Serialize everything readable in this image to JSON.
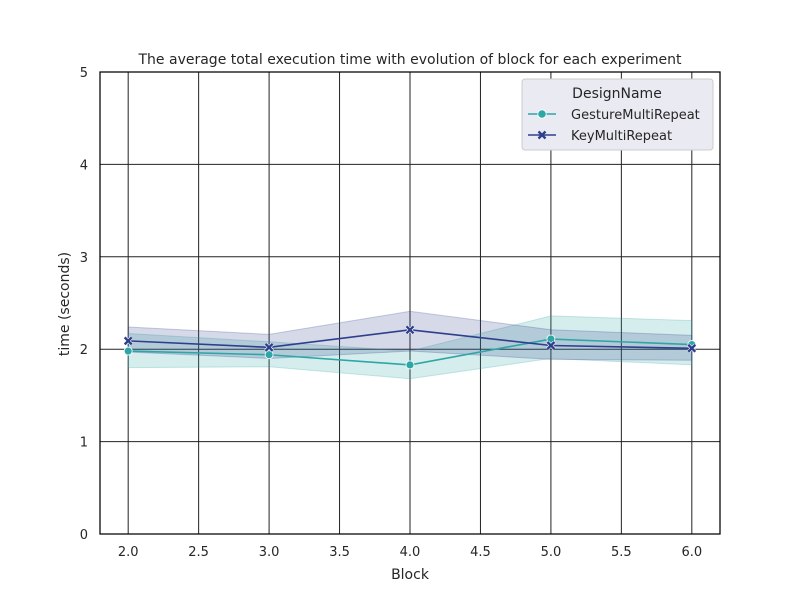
{
  "chart_data": {
    "type": "line",
    "title": "The average total execution time with evolution of block for each experiment",
    "xlabel": "Block",
    "ylabel": "time (seconds)",
    "xlim": [
      1.8,
      6.2
    ],
    "ylim": [
      0,
      5
    ],
    "x_ticks": [
      "2.0",
      "2.5",
      "3.0",
      "3.5",
      "4.0",
      "4.5",
      "5.0",
      "5.5",
      "6.0"
    ],
    "y_ticks": [
      "0",
      "1",
      "2",
      "3",
      "4",
      "5"
    ],
    "grid": true,
    "legend": {
      "title": "DesignName",
      "placement": "top-right"
    },
    "x": [
      2.0,
      3.0,
      4.0,
      5.0,
      6.0
    ],
    "series": [
      {
        "name": "GestureMultiRepeat",
        "color": "#2ea6a6",
        "marker": "circle",
        "values": [
          1.98,
          1.94,
          1.83,
          2.11,
          2.05
        ],
        "ci_low": [
          1.8,
          1.81,
          1.68,
          1.9,
          1.83
        ],
        "ci_high": [
          2.17,
          2.08,
          1.98,
          2.36,
          2.31
        ]
      },
      {
        "name": "KeyMultiRepeat",
        "color": "#2e3f8c",
        "marker": "x",
        "values": [
          2.09,
          2.02,
          2.21,
          2.04,
          2.01
        ],
        "ci_low": [
          1.97,
          1.9,
          1.98,
          1.89,
          1.88
        ],
        "ci_high": [
          2.24,
          2.16,
          2.41,
          2.21,
          2.15
        ]
      }
    ]
  }
}
